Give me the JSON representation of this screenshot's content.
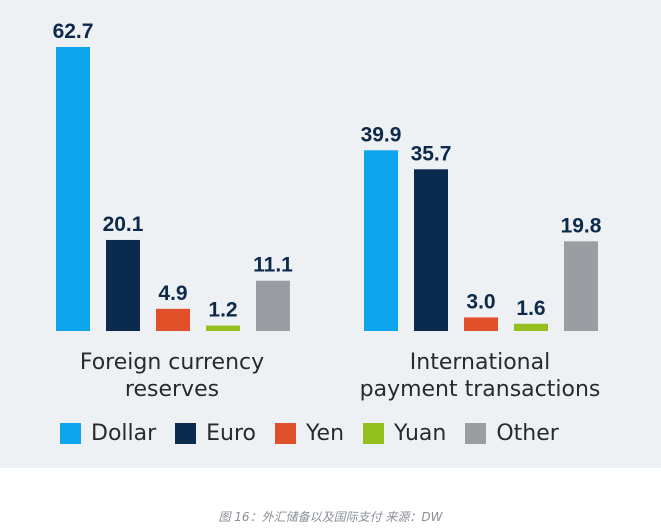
{
  "chart_data": {
    "type": "bar",
    "categories": [
      "Foreign currency reserves",
      "International payment transactions"
    ],
    "category_lines": [
      [
        "Foreign currency",
        "reserves"
      ],
      [
        "International",
        "payment transactions"
      ]
    ],
    "series": [
      {
        "name": "Dollar",
        "color": "#0fa5ec",
        "values": [
          62.7,
          39.9
        ]
      },
      {
        "name": "Euro",
        "color": "#0a2a4e",
        "values": [
          20.1,
          35.7
        ]
      },
      {
        "name": "Yen",
        "color": "#e0512b",
        "values": [
          4.9,
          3.0
        ]
      },
      {
        "name": "Yuan",
        "color": "#93c01f",
        "values": [
          1.2,
          1.6
        ]
      },
      {
        "name": "Other",
        "color": "#9a9ea3",
        "values": [
          11.1,
          19.8
        ]
      }
    ],
    "ylim": [
      0,
      62.7
    ],
    "grid": false,
    "legend_position": "bottom"
  },
  "caption": "图 16：外汇储备以及国际支付  来源：DW"
}
